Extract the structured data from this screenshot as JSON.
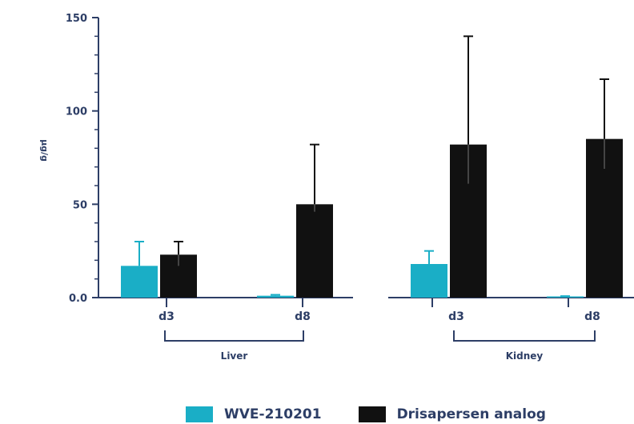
{
  "chart_data": {
    "type": "bar",
    "title": "",
    "ylabel": "µg/g",
    "ylim": [
      0,
      150
    ],
    "yticks": [
      {
        "value": 0,
        "label": "0.0"
      },
      {
        "value": 50,
        "label": "50"
      },
      {
        "value": 100,
        "label": "100"
      },
      {
        "value": 150,
        "label": "150"
      }
    ],
    "groups": [
      {
        "name": "Liver",
        "categories": [
          "d3",
          "d8"
        ]
      },
      {
        "name": "Kidney",
        "categories": [
          "d3",
          "d8"
        ]
      }
    ],
    "categories": [
      "d3",
      "d8",
      "d3",
      "d8"
    ],
    "series": [
      {
        "name": "WVE-210201",
        "color": "#1aaec6",
        "values": [
          17,
          1,
          18,
          0.5
        ],
        "error_upper": [
          30,
          1.5,
          25,
          0.8
        ]
      },
      {
        "name": "Drisapersen analog",
        "color": "#111111",
        "values": [
          23,
          50,
          82,
          85
        ],
        "error_upper": [
          30,
          82,
          140,
          117
        ],
        "error_lower": [
          17,
          46,
          61,
          69
        ]
      }
    ],
    "legend_position": "bottom",
    "grid": false
  },
  "colors": {
    "axis": "#2d3e66",
    "text": "#2d3e66"
  }
}
